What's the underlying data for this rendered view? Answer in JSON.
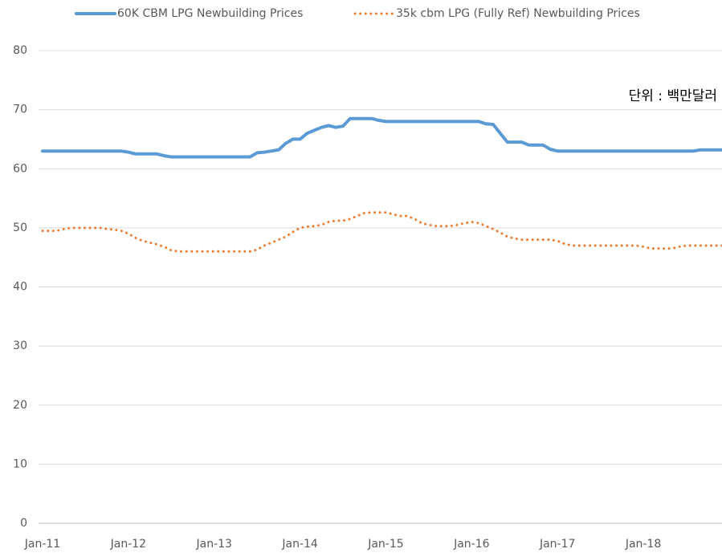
{
  "chart_data": {
    "type": "line",
    "annotation": "단위 : 백만달러",
    "categories": [
      "Jan-11",
      null,
      null,
      null,
      null,
      null,
      null,
      null,
      null,
      null,
      null,
      null,
      "Jan-12",
      null,
      null,
      null,
      null,
      null,
      null,
      null,
      null,
      null,
      null,
      null,
      "Jan-13",
      null,
      null,
      null,
      null,
      null,
      null,
      null,
      null,
      null,
      null,
      null,
      "Jan-14",
      null,
      null,
      null,
      null,
      null,
      null,
      null,
      null,
      null,
      null,
      null,
      "Jan-15",
      null,
      null,
      null,
      null,
      null,
      null,
      null,
      null,
      null,
      null,
      null,
      "Jan-16",
      null,
      null,
      null,
      null,
      null,
      null,
      null,
      null,
      null,
      null,
      null,
      "Jan-17",
      null,
      null,
      null,
      null,
      null,
      null,
      null,
      null,
      null,
      null,
      null,
      "Jan-18",
      null,
      null,
      null,
      null,
      null,
      null,
      null,
      null,
      null,
      null,
      null
    ],
    "series": [
      {
        "name": "60K CBM LPG Newbuilding Prices",
        "color": "#5b9bd5",
        "style": "solid",
        "values": [
          63,
          63,
          63,
          63,
          63,
          63,
          63,
          63,
          63,
          63,
          63,
          63,
          62.8,
          62.5,
          62.5,
          62.5,
          62.5,
          62.2,
          62,
          62,
          62,
          62,
          62,
          62,
          62,
          62,
          62,
          62,
          62,
          62,
          62.7,
          62.8,
          63,
          63.2,
          64.3,
          65,
          65,
          66,
          66.5,
          67,
          67.3,
          67,
          67.2,
          68.5,
          68.5,
          68.5,
          68.5,
          68.2,
          68,
          68,
          68,
          68,
          68,
          68,
          68,
          68,
          68,
          68,
          68,
          68,
          68,
          68,
          67.6,
          67.5,
          66,
          64.5,
          64.5,
          64.5,
          64,
          64,
          64,
          63.3,
          63,
          63,
          63,
          63,
          63,
          63,
          63,
          63,
          63,
          63,
          63,
          63,
          63,
          63,
          63,
          63,
          63,
          63,
          63,
          63,
          63.2,
          63.2,
          63.2,
          63.2
        ]
      },
      {
        "name": "35k cbm LPG (Fully Ref) Newbuilding Prices",
        "color": "#ed7d31",
        "style": "dotted",
        "values": [
          49.5,
          49.5,
          49.5,
          49.8,
          50,
          50,
          50,
          50,
          50,
          49.8,
          49.7,
          49.5,
          49,
          48.3,
          47.8,
          47.5,
          47.2,
          46.8,
          46.2,
          46,
          46,
          46,
          46,
          46,
          46,
          46,
          46,
          46,
          46,
          46,
          46.3,
          47,
          47.5,
          48,
          48.5,
          49.3,
          50,
          50.2,
          50.3,
          50.5,
          51,
          51.2,
          51.2,
          51.5,
          52,
          52.5,
          52.6,
          52.6,
          52.6,
          52.3,
          52,
          52,
          51.5,
          50.8,
          50.5,
          50.3,
          50.3,
          50.3,
          50.5,
          50.8,
          51,
          50.8,
          50.3,
          49.8,
          49.2,
          48.5,
          48.2,
          48,
          48,
          48,
          48,
          48,
          47.8,
          47.3,
          47,
          47,
          47,
          47,
          47,
          47,
          47,
          47,
          47,
          47,
          46.8,
          46.5,
          46.5,
          46.5,
          46.5,
          46.8,
          47,
          47,
          47,
          47,
          47,
          47
        ]
      }
    ],
    "ylim": [
      0,
      80
    ],
    "yticks": [
      0,
      10,
      20,
      30,
      40,
      50,
      60,
      70,
      80
    ],
    "grid": true,
    "legend": "top"
  }
}
